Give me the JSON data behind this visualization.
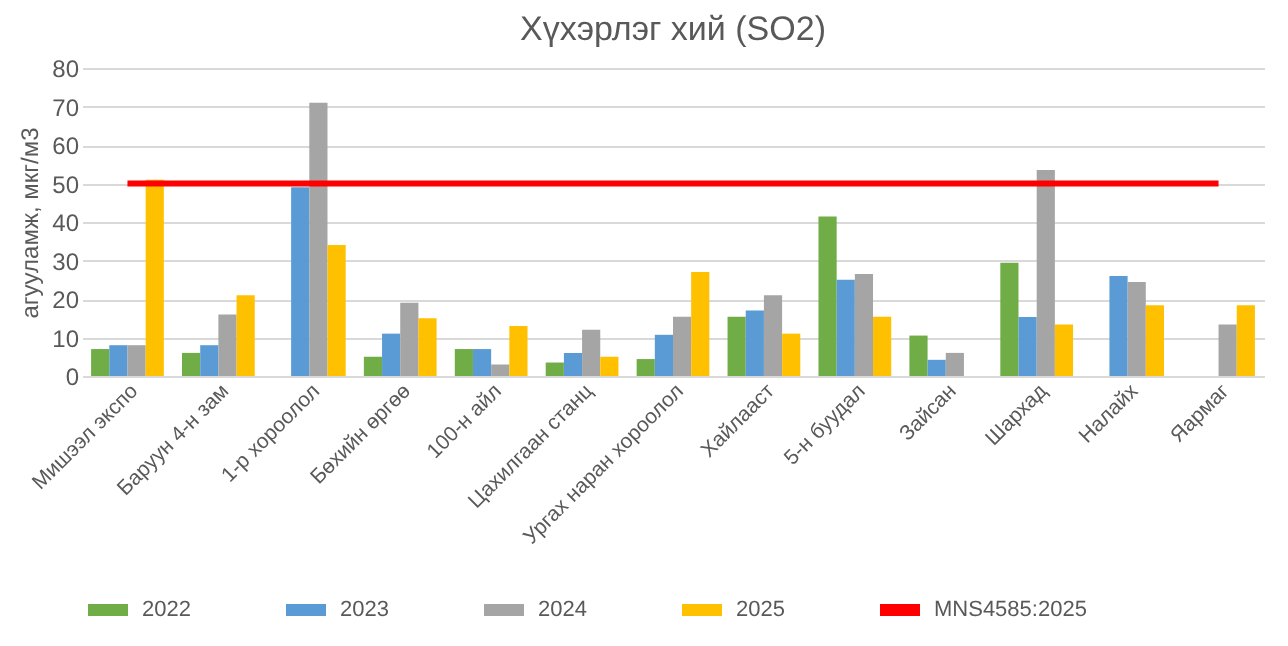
{
  "chart_data": {
    "type": "bar",
    "title": "Хүхэрлэг хий (SO2)",
    "ylabel": "агууламж, мкг/м3",
    "categories": [
      "Мишээл экспо",
      "Баруун 4-н зам",
      "1-р хороолол",
      "Бөхийн өргөө",
      "100-н айл",
      "Цахилгаан станц",
      "Ургах наран хороолол",
      "Хайлааст",
      "5-н буудал",
      "Зайсан",
      "Шархад",
      "Налайх",
      "Яармаг"
    ],
    "series": [
      {
        "name": "2022",
        "color": "#70ad47",
        "values": [
          7,
          6,
          null,
          5,
          7,
          3.5,
          4.4,
          15.4,
          41.4,
          10.5,
          29.4,
          null,
          null
        ]
      },
      {
        "name": "2023",
        "color": "#5b9bd5",
        "values": [
          8,
          8,
          49,
          11,
          7,
          6,
          10.7,
          17,
          25,
          4.2,
          15.3,
          26,
          null
        ]
      },
      {
        "name": "2024",
        "color": "#a5a5a5",
        "values": [
          8,
          16,
          71,
          19,
          3,
          12,
          15.4,
          21,
          26.5,
          6,
          53.5,
          24.4,
          13.4
        ]
      },
      {
        "name": "2025",
        "color": "#ffc000",
        "values": [
          51,
          21,
          34,
          15,
          13,
          5,
          27,
          11,
          15.4,
          null,
          13.4,
          18.4,
          18.4
        ]
      },
      {
        "name": "MNS4585:2025",
        "type": "line",
        "color": "#ff0000",
        "values": [
          50,
          50,
          50,
          50,
          50,
          50,
          50,
          50,
          50,
          50,
          50,
          50,
          50
        ]
      }
    ],
    "ylim": [
      0,
      80
    ],
    "yticks": [
      0,
      10,
      20,
      30,
      40,
      50,
      60,
      70,
      80
    ],
    "grid": "y",
    "legend": "bottom"
  }
}
